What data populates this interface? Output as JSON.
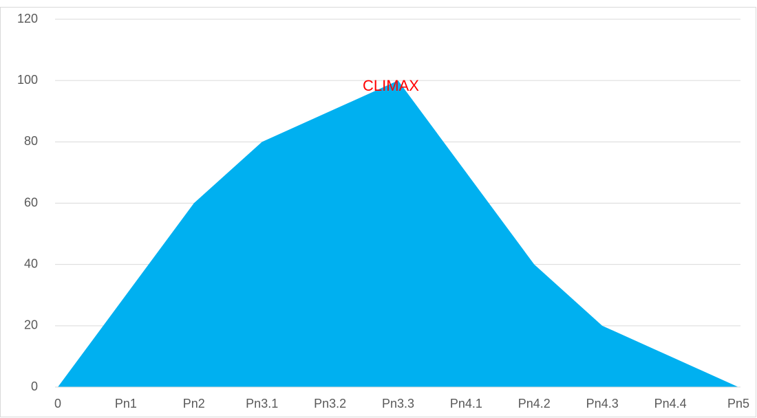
{
  "chart_data": {
    "type": "area",
    "categories": [
      "0",
      "Pn1",
      "Pn2",
      "Pn3.1",
      "Pn3.2",
      "Pn3.3",
      "Pn4.1",
      "Pn4.2",
      "Pn4.3",
      "Pn4.4",
      "Pn5"
    ],
    "values": [
      0,
      30,
      60,
      80,
      90,
      100,
      70,
      40,
      20,
      10,
      0
    ],
    "color": "#00b0f0",
    "annotation": "CLIMAX",
    "annotation_color": "#ff0000",
    "ylim": [
      0,
      120
    ],
    "yticks": [
      0,
      20,
      40,
      60,
      80,
      100,
      120
    ],
    "grid": true
  }
}
